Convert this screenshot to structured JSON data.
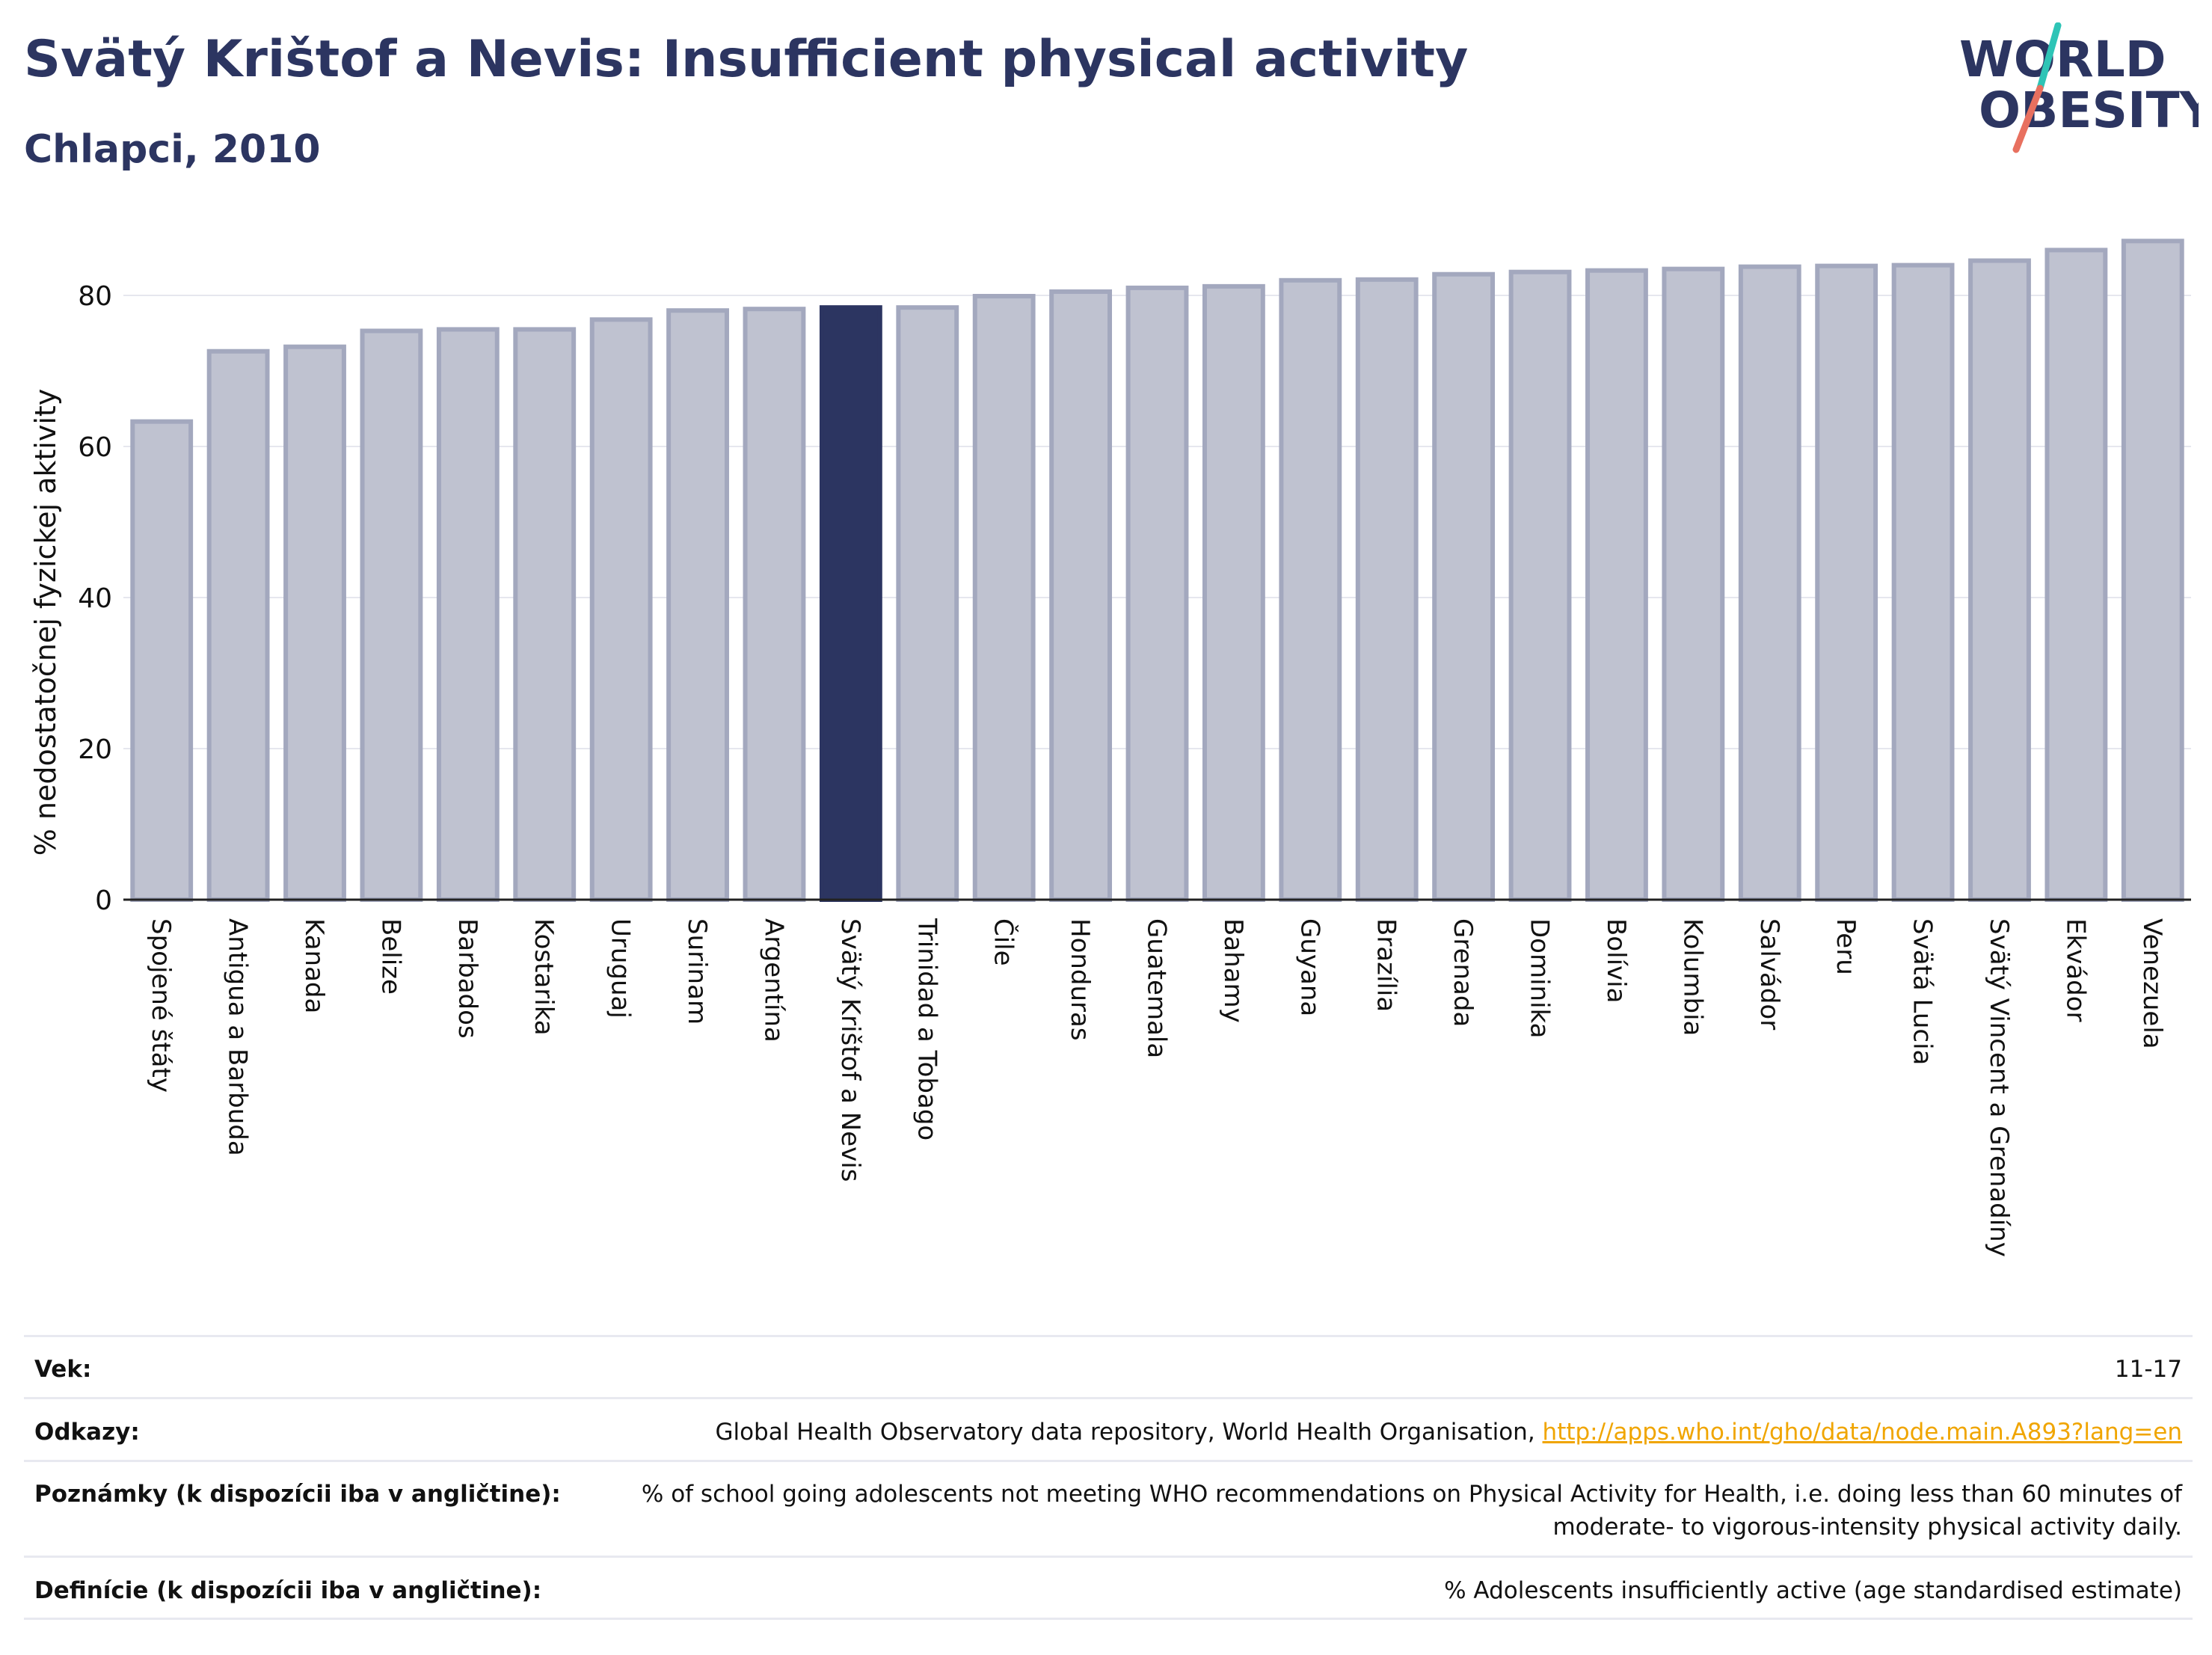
{
  "header": {
    "title": "Svätý Krištof a Nevis: Insufficient physical activity",
    "subtitle": "Chlapci, 2010",
    "logo": {
      "line1": "WORLD",
      "line2": "OBESITY"
    }
  },
  "colors": {
    "bar": "#bfc2d0",
    "bar_edge": "#a3a8be",
    "highlight": "#2c3561",
    "text": "#2c3561",
    "link": "#f0a500"
  },
  "chart_data": {
    "type": "bar",
    "title": "Svätý Krištof a Nevis: Insufficient physical activity",
    "subtitle": "Chlapci, 2010",
    "ylabel": "% nedostatočnej fyzickej aktivity",
    "xlabel": "",
    "ylim": [
      0,
      90
    ],
    "yticks": [
      0,
      20,
      40,
      60,
      80
    ],
    "grid": true,
    "highlight": "Svätý Krištof a Nevis",
    "categories": [
      "Spojené štáty",
      "Antigua a Barbuda",
      "Kanada",
      "Belize",
      "Barbados",
      "Kostarika",
      "Uruguaj",
      "Surinam",
      "Argentína",
      "Svätý Krištof a Nevis",
      "Trinidad a Tobago",
      "Čile",
      "Honduras",
      "Guatemala",
      "Bahamy",
      "Guyana",
      "Brazília",
      "Grenada",
      "Dominika",
      "Bolívia",
      "Kolumbia",
      "Salvádor",
      "Peru",
      "Svätá Lucia",
      "Svätý Vincent a Grenadíny",
      "Ekvádor",
      "Venezuela"
    ],
    "values": [
      63.3,
      72.6,
      73.2,
      75.3,
      75.5,
      75.5,
      76.8,
      78.0,
      78.2,
      78.4,
      78.4,
      79.9,
      80.5,
      81.0,
      81.2,
      82.0,
      82.1,
      82.8,
      83.1,
      83.3,
      83.5,
      83.8,
      83.9,
      84.0,
      84.6,
      86.0,
      87.2
    ]
  },
  "info": {
    "age_label": "Vek:",
    "age_value": "11-17",
    "refs_label": "Odkazy:",
    "refs_text": "Global Health Observatory data repository, World Health Organisation, ",
    "refs_link": "http://apps.who.int/gho/data/node.main.A893?lang=en",
    "notes_label": "Poznámky (k dispozícii iba v angličtine):",
    "notes_line1": "% of school going adolescents not meeting WHO recommendations on Physical Activity for Health, i.e. doing less than 60 minutes of",
    "notes_line2": "moderate- to vigorous-intensity physical activity daily.",
    "def_label": "Definície (k dispozícii iba v angličtine):",
    "def_value": "% Adolescents insufficiently active (age standardised estimate)"
  }
}
